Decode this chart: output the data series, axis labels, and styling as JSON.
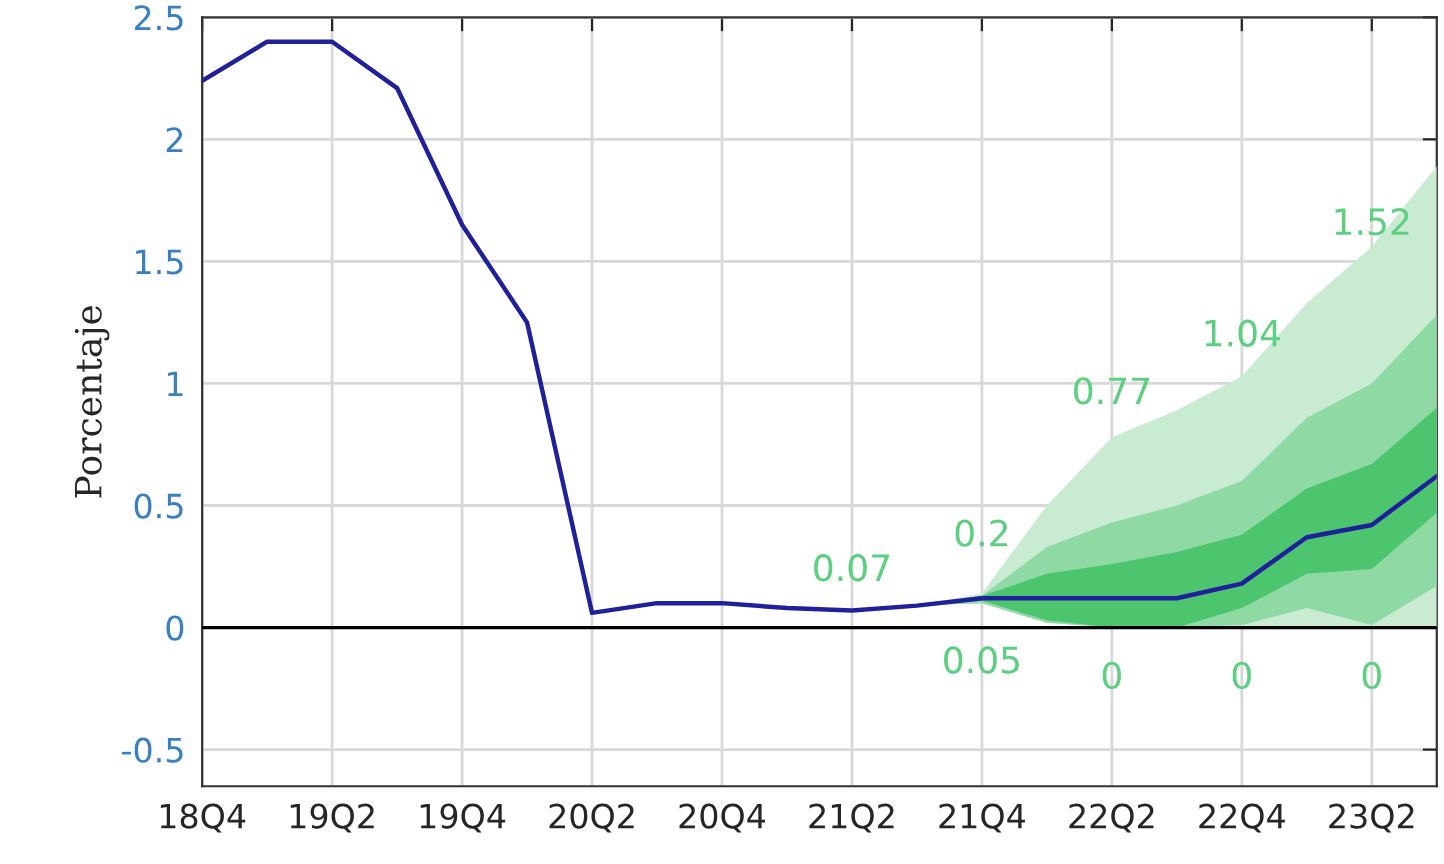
{
  "chart_data": {
    "type": "line",
    "ylabel": "Porcentaje",
    "categories": [
      "18Q4",
      null,
      "19Q2",
      null,
      "19Q4",
      null,
      "20Q2",
      null,
      "20Q4",
      null,
      "21Q2",
      null,
      "21Q4",
      null,
      "22Q2",
      null,
      "22Q4",
      null,
      "23Q2",
      null
    ],
    "series": [
      {
        "color": "#20209a",
        "values": [
          2.24,
          2.4,
          2.4,
          2.21,
          1.65,
          1.25,
          0.06,
          0.1,
          0.1,
          0.08,
          0.07,
          0.09,
          0.12,
          0.12,
          0.12,
          0.12,
          0.18,
          0.37,
          0.42,
          0.62
        ]
      },
      {
        "color": "#c8ebd2",
        "values": [
          null,
          null,
          null,
          null,
          null,
          null,
          null,
          null,
          null,
          null,
          null,
          null,
          null,
          null,
          null,
          null,
          null,
          null,
          null,
          null
        ],
        "lower": [
          null,
          null,
          null,
          null,
          null,
          null,
          null,
          null,
          null,
          null,
          null,
          0.09,
          0.1,
          0.02,
          0,
          0,
          0,
          0,
          0,
          0
        ],
        "upper": [
          null,
          null,
          null,
          null,
          null,
          null,
          null,
          null,
          null,
          null,
          null,
          0.09,
          0.14,
          0.5,
          0.78,
          0.89,
          1.03,
          1.33,
          1.56,
          1.89
        ]
      },
      {
        "color": "#8fd9a5",
        "values": [
          null,
          null,
          null,
          null,
          null,
          null,
          null,
          null,
          null,
          null,
          null,
          null,
          null,
          null,
          null,
          null,
          null,
          null,
          null,
          null
        ],
        "lower": [
          null,
          null,
          null,
          null,
          null,
          null,
          null,
          null,
          null,
          null,
          null,
          0.09,
          0.1,
          0.02,
          0,
          0,
          0.01,
          0.08,
          0.01,
          0.17
        ],
        "upper": [
          null,
          null,
          null,
          null,
          null,
          null,
          null,
          null,
          null,
          null,
          null,
          0.09,
          0.13,
          0.33,
          0.43,
          0.5,
          0.6,
          0.86,
          1.0,
          1.28
        ]
      },
      {
        "color": "#4cc56e",
        "values": [
          null,
          null,
          null,
          null,
          null,
          null,
          null,
          null,
          null,
          null,
          null,
          null,
          null,
          null,
          null,
          null,
          null,
          null,
          null,
          null
        ],
        "lower": [
          null,
          null,
          null,
          null,
          null,
          null,
          null,
          null,
          null,
          null,
          null,
          0.09,
          0.11,
          0.03,
          0,
          0,
          0.08,
          0.22,
          0.24,
          0.47
        ],
        "upper": [
          null,
          null,
          null,
          null,
          null,
          null,
          null,
          null,
          null,
          null,
          null,
          0.09,
          0.13,
          0.22,
          0.26,
          0.31,
          0.38,
          0.57,
          0.67,
          0.9
        ]
      }
    ],
    "ylim": [
      -0.65,
      2.5
    ],
    "yticks": [
      -0.5,
      0,
      0.5,
      1,
      1.5,
      2,
      2.5
    ],
    "grid": true,
    "marker": "none",
    "line_style": "solid",
    "ref_lines": [
      {
        "axis": "y",
        "value": 0,
        "color": "#000000"
      }
    ],
    "annotations": [
      "0.07",
      "0.2",
      "0.77",
      "1.04",
      "1.52",
      "0.05",
      "0",
      "0",
      "0"
    ]
  }
}
